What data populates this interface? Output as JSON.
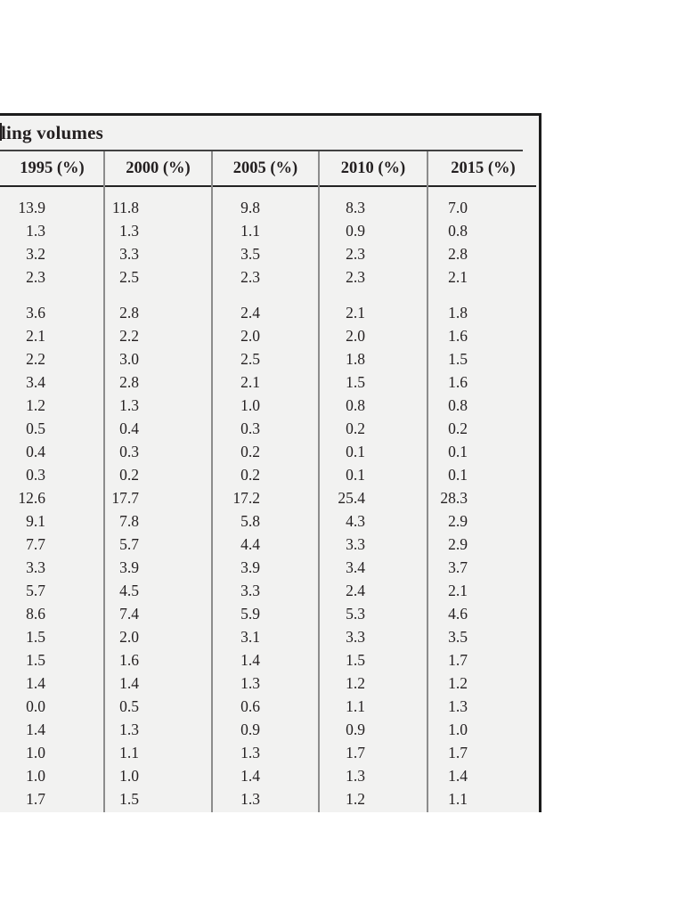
{
  "table": {
    "title_fragment": "ling volumes",
    "columns": [
      "1995 (%)",
      "2000 (%)",
      "2005 (%)",
      "2010 (%)",
      "2015 (%)"
    ],
    "row_groups": [
      {
        "rows": [
          [
            "13.9",
            "11.8",
            "9.8",
            "8.3",
            "7.0"
          ],
          [
            "1.3",
            "1.3",
            "1.1",
            "0.9",
            "0.8"
          ],
          [
            "3.2",
            "3.3",
            "3.5",
            "2.3",
            "2.8"
          ],
          [
            "2.3",
            "2.5",
            "2.3",
            "2.3",
            "2.1"
          ]
        ]
      },
      {
        "rows": [
          [
            "3.6",
            "2.8",
            "2.4",
            "2.1",
            "1.8"
          ],
          [
            "2.1",
            "2.2",
            "2.0",
            "2.0",
            "1.6"
          ],
          [
            "2.2",
            "3.0",
            "2.5",
            "1.8",
            "1.5"
          ],
          [
            "3.4",
            "2.8",
            "2.1",
            "1.5",
            "1.6"
          ],
          [
            "1.2",
            "1.3",
            "1.0",
            "0.8",
            "0.8"
          ],
          [
            "0.5",
            "0.4",
            "0.3",
            "0.2",
            "0.2"
          ],
          [
            "0.4",
            "0.3",
            "0.2",
            "0.1",
            "0.1"
          ],
          [
            "0.3",
            "0.2",
            "0.2",
            "0.1",
            "0.1"
          ],
          [
            "12.6",
            "17.7",
            "17.2",
            "25.4",
            "28.3"
          ],
          [
            "9.1",
            "7.8",
            "5.8",
            "4.3",
            "2.9"
          ],
          [
            "7.7",
            "5.7",
            "4.4",
            "3.3",
            "2.9"
          ],
          [
            "3.3",
            "3.9",
            "3.9",
            "3.4",
            "3.7"
          ],
          [
            "5.7",
            "4.5",
            "3.3",
            "2.4",
            "2.1"
          ],
          [
            "8.6",
            "7.4",
            "5.9",
            "5.3",
            "4.6"
          ],
          [
            "1.5",
            "2.0",
            "3.1",
            "3.3",
            "3.5"
          ],
          [
            "1.5",
            "1.6",
            "1.4",
            "1.5",
            "1.7"
          ],
          [
            "1.4",
            "1.4",
            "1.3",
            "1.2",
            "1.2"
          ],
          [
            "0.0",
            "0.5",
            "0.6",
            "1.1",
            "1.3"
          ],
          [
            "1.4",
            "1.3",
            "0.9",
            "0.9",
            "1.0"
          ],
          [
            "1.0",
            "1.1",
            "1.3",
            "1.7",
            "1.7"
          ],
          [
            "1.0",
            "1.0",
            "1.4",
            "1.3",
            "1.4"
          ],
          [
            "1.7",
            "1.5",
            "1.3",
            "1.2",
            "1.1"
          ]
        ]
      }
    ],
    "colors": {
      "table_background": "#f2f2f1",
      "text": "#231f20",
      "outer_border": "#1c1c1c",
      "column_divider": "#8c8c8c"
    }
  }
}
